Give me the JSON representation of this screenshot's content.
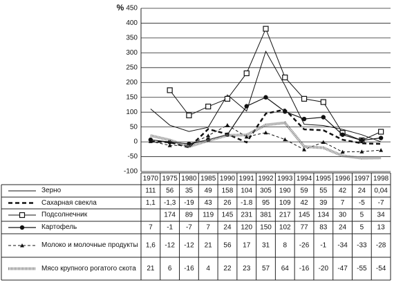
{
  "chart_data": {
    "type": "line",
    "y_label": "%",
    "categories": [
      "1970",
      "1975",
      "1980",
      "1985",
      "1990",
      "1991",
      "1992",
      "1993",
      "1994",
      "1995",
      "1996",
      "1997",
      "1998"
    ],
    "ylim": [
      -100,
      450
    ],
    "yticks": [
      -100,
      -50,
      0,
      50,
      100,
      150,
      200,
      250,
      300,
      350,
      400,
      450
    ],
    "grid": true,
    "series": [
      {
        "name": "Зерно",
        "color": "#111111",
        "dash": "solid",
        "width": 1,
        "marker": "none",
        "values": [
          111,
          56,
          35,
          49,
          158,
          104,
          305,
          190,
          59,
          55,
          42,
          24,
          0.04
        ],
        "value_labels": [
          "111",
          "56",
          "35",
          "49",
          "158",
          "104",
          "305",
          "190",
          "59",
          "55",
          "42",
          "24",
          "0,04"
        ]
      },
      {
        "name": "Сахарная свекла",
        "color": "#111111",
        "dash": "6,4",
        "width": 2.5,
        "marker": "none",
        "values": [
          1.1,
          -1.3,
          -19,
          43,
          26,
          -1.8,
          95,
          109,
          42,
          39,
          7,
          -5,
          -7
        ],
        "value_labels": [
          "1,1",
          "-1,3",
          "-19",
          "43",
          "26",
          "-1.8",
          "95",
          "109",
          "42",
          "39",
          "7",
          "-5",
          "-7"
        ]
      },
      {
        "name": "Подсолнечник",
        "color": "#111111",
        "dash": "solid",
        "width": 1,
        "marker": "square",
        "values": [
          null,
          174,
          89,
          119,
          145,
          231,
          381,
          217,
          145,
          134,
          30,
          5,
          34
        ]
      },
      {
        "name": "Картофель",
        "color": "#111111",
        "dash": "solid",
        "width": 1.2,
        "marker": "circle",
        "values": [
          7,
          -1,
          -7,
          7,
          24,
          120,
          150,
          102,
          77,
          83,
          24,
          5,
          13
        ]
      },
      {
        "name": "Молоко и молочные продукты",
        "color": "#111111",
        "dash": "4,3",
        "width": 1,
        "marker": "triangle",
        "values": [
          1.6,
          -12,
          -12,
          21,
          56,
          17,
          31,
          8,
          -26,
          -1,
          -34,
          -33,
          -28
        ],
        "value_labels": [
          "1,6",
          "-12",
          "-12",
          "21",
          "56",
          "17",
          "31",
          "8",
          "-26",
          "-1",
          "-34",
          "-33",
          "-28"
        ]
      },
      {
        "name": "Мясо крупного рогатого скота",
        "color": "#777777",
        "dash": "1,1",
        "width": 4,
        "marker": "none",
        "values": [
          21,
          6,
          -16,
          4,
          22,
          23,
          57,
          64,
          -16,
          -20,
          -47,
          -55,
          -54
        ]
      }
    ]
  }
}
